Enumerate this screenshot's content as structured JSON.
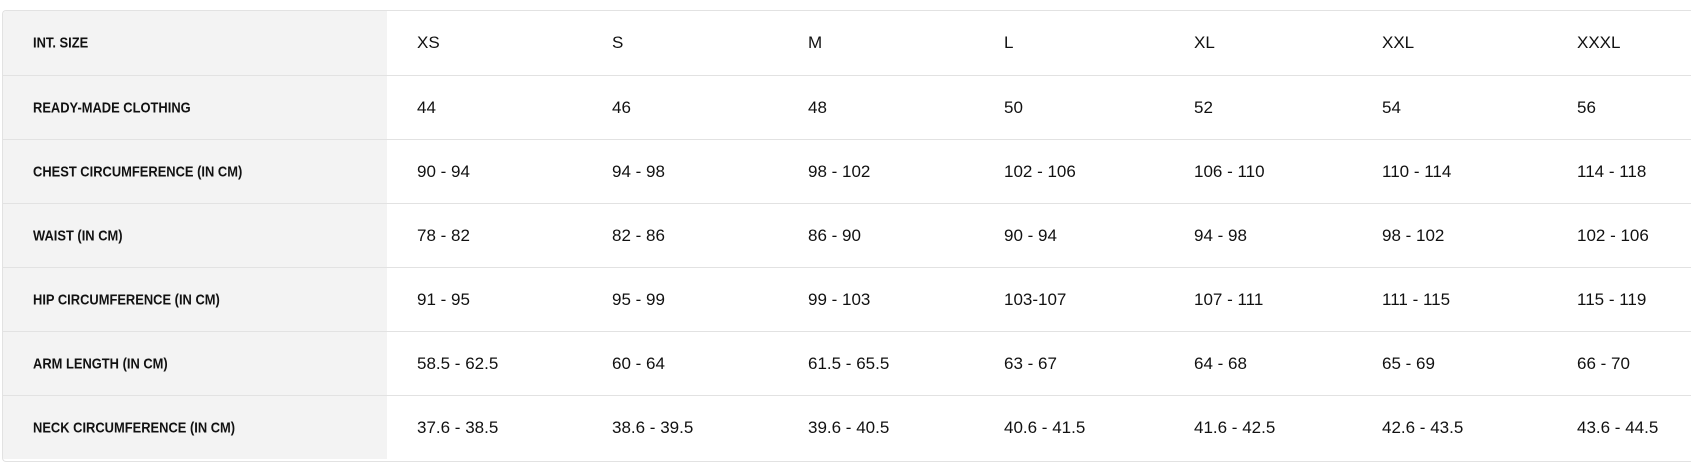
{
  "table": {
    "rows": [
      {
        "label": "INT. SIZE",
        "cells": [
          "XS",
          "S",
          "M",
          "L",
          "XL",
          "XXL",
          "XXXL"
        ]
      },
      {
        "label": "READY-MADE CLOTHING",
        "cells": [
          "44",
          "46",
          "48",
          "50",
          "52",
          "54",
          "56"
        ]
      },
      {
        "label": "CHEST CIRCUMFERENCE (IN CM)",
        "cells": [
          "90 - 94",
          "94 - 98",
          "98 - 102",
          "102 - 106",
          "106 - 110",
          "110 - 114",
          "114 - 118"
        ]
      },
      {
        "label": "WAIST (IN CM)",
        "cells": [
          "78 - 82",
          "82 - 86",
          "86 - 90",
          "90 - 94",
          "94 - 98",
          "98 - 102",
          "102 - 106"
        ]
      },
      {
        "label": "HIP CIRCUMFERENCE (IN CM)",
        "cells": [
          "91 - 95",
          "95 - 99",
          "99 - 103",
          "103-107",
          "107 - 111",
          "111 - 115",
          "115 - 119"
        ]
      },
      {
        "label": "ARM LENGTH (IN CM)",
        "cells": [
          "58.5 - 62.5",
          "60 - 64",
          "61.5 - 65.5",
          "63 - 67",
          "64 - 68",
          "65 - 69",
          "66 - 70"
        ]
      },
      {
        "label": "NECK CIRCUMFERENCE (IN CM)",
        "cells": [
          "37.6 - 38.5",
          "38.6 - 39.5",
          "39.6 - 40.5",
          "40.6 - 41.5",
          "41.6 - 42.5",
          "42.6 - 43.5",
          "43.6 - 44.5"
        ]
      }
    ]
  }
}
